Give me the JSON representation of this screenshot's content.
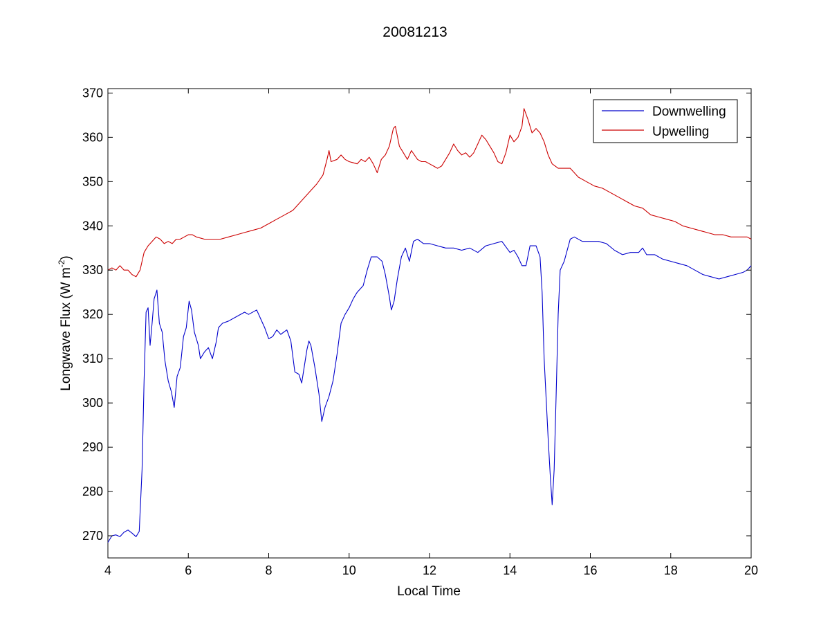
{
  "chart_data": {
    "type": "line",
    "title": "20081213",
    "xlabel": "Local Time",
    "ylabel": {
      "main": "Longwave Flux (W m",
      "sup": "-2",
      "close": ")"
    },
    "xlim": [
      4,
      20
    ],
    "ylim": [
      265,
      371
    ],
    "xticks": [
      4,
      6,
      8,
      10,
      12,
      14,
      16,
      18,
      20
    ],
    "yticks": [
      270,
      280,
      290,
      300,
      310,
      320,
      330,
      340,
      350,
      360,
      370
    ],
    "grid": false,
    "legend_position": "top-right",
    "series": [
      {
        "name": "Downwelling",
        "color": "#0000cc",
        "points": [
          [
            4.0,
            268.5
          ],
          [
            4.1,
            270.0
          ],
          [
            4.2,
            270.2
          ],
          [
            4.3,
            269.8
          ],
          [
            4.4,
            270.8
          ],
          [
            4.5,
            271.3
          ],
          [
            4.6,
            270.6
          ],
          [
            4.7,
            269.8
          ],
          [
            4.78,
            271.0
          ],
          [
            4.85,
            285.0
          ],
          [
            4.9,
            305.0
          ],
          [
            4.95,
            320.5
          ],
          [
            5.0,
            321.5
          ],
          [
            5.05,
            313.0
          ],
          [
            5.1,
            318.0
          ],
          [
            5.15,
            323.5
          ],
          [
            5.22,
            325.5
          ],
          [
            5.28,
            318.0
          ],
          [
            5.35,
            316.0
          ],
          [
            5.42,
            309.5
          ],
          [
            5.5,
            305.0
          ],
          [
            5.58,
            302.5
          ],
          [
            5.65,
            299.0
          ],
          [
            5.72,
            306.0
          ],
          [
            5.8,
            308.0
          ],
          [
            5.88,
            315.0
          ],
          [
            5.95,
            317.0
          ],
          [
            6.02,
            323.0
          ],
          [
            6.08,
            321.0
          ],
          [
            6.15,
            316.0
          ],
          [
            6.25,
            313.0
          ],
          [
            6.3,
            310.0
          ],
          [
            6.4,
            311.5
          ],
          [
            6.5,
            312.5
          ],
          [
            6.6,
            310.0
          ],
          [
            6.7,
            314.0
          ],
          [
            6.75,
            317.0
          ],
          [
            6.85,
            318.0
          ],
          [
            7.0,
            318.5
          ],
          [
            7.2,
            319.5
          ],
          [
            7.4,
            320.5
          ],
          [
            7.5,
            320.0
          ],
          [
            7.7,
            321.0
          ],
          [
            7.8,
            319.0
          ],
          [
            7.9,
            317.0
          ],
          [
            8.0,
            314.5
          ],
          [
            8.1,
            315.0
          ],
          [
            8.2,
            316.5
          ],
          [
            8.3,
            315.5
          ],
          [
            8.45,
            316.5
          ],
          [
            8.55,
            314.0
          ],
          [
            8.65,
            307.0
          ],
          [
            8.75,
            306.5
          ],
          [
            8.82,
            304.5
          ],
          [
            8.88,
            308.0
          ],
          [
            8.95,
            312.0
          ],
          [
            9.0,
            314.0
          ],
          [
            9.05,
            313.0
          ],
          [
            9.15,
            308.0
          ],
          [
            9.25,
            302.0
          ],
          [
            9.32,
            295.8
          ],
          [
            9.4,
            299.0
          ],
          [
            9.5,
            301.5
          ],
          [
            9.6,
            305.0
          ],
          [
            9.7,
            311.0
          ],
          [
            9.8,
            318.0
          ],
          [
            9.9,
            320.0
          ],
          [
            10.0,
            321.5
          ],
          [
            10.1,
            323.5
          ],
          [
            10.2,
            325.0
          ],
          [
            10.35,
            326.5
          ],
          [
            10.45,
            330.0
          ],
          [
            10.55,
            333.0
          ],
          [
            10.7,
            333.0
          ],
          [
            10.82,
            332.0
          ],
          [
            10.9,
            329.0
          ],
          [
            11.0,
            324.0
          ],
          [
            11.05,
            321.0
          ],
          [
            11.12,
            323.0
          ],
          [
            11.2,
            328.0
          ],
          [
            11.3,
            333.0
          ],
          [
            11.4,
            335.0
          ],
          [
            11.5,
            332.0
          ],
          [
            11.6,
            336.5
          ],
          [
            11.7,
            337.0
          ],
          [
            11.85,
            336.0
          ],
          [
            12.0,
            336.0
          ],
          [
            12.2,
            335.5
          ],
          [
            12.4,
            335.0
          ],
          [
            12.6,
            335.0
          ],
          [
            12.8,
            334.5
          ],
          [
            13.0,
            335.0
          ],
          [
            13.2,
            334.0
          ],
          [
            13.4,
            335.5
          ],
          [
            13.6,
            336.0
          ],
          [
            13.8,
            336.5
          ],
          [
            14.0,
            334.0
          ],
          [
            14.1,
            334.5
          ],
          [
            14.2,
            333.0
          ],
          [
            14.3,
            331.0
          ],
          [
            14.4,
            331.0
          ],
          [
            14.5,
            335.5
          ],
          [
            14.65,
            335.5
          ],
          [
            14.75,
            333.0
          ],
          [
            14.8,
            325.0
          ],
          [
            14.85,
            310.0
          ],
          [
            14.9,
            301.0
          ],
          [
            14.95,
            292.0
          ],
          [
            15.0,
            284.0
          ],
          [
            15.05,
            277.0
          ],
          [
            15.1,
            285.0
          ],
          [
            15.15,
            302.0
          ],
          [
            15.2,
            320.0
          ],
          [
            15.25,
            330.0
          ],
          [
            15.35,
            332.0
          ],
          [
            15.5,
            337.0
          ],
          [
            15.6,
            337.5
          ],
          [
            15.8,
            336.5
          ],
          [
            16.0,
            336.5
          ],
          [
            16.2,
            336.5
          ],
          [
            16.4,
            336.0
          ],
          [
            16.6,
            334.5
          ],
          [
            16.8,
            333.5
          ],
          [
            17.0,
            334.0
          ],
          [
            17.2,
            334.0
          ],
          [
            17.3,
            335.0
          ],
          [
            17.4,
            333.5
          ],
          [
            17.6,
            333.5
          ],
          [
            17.8,
            332.5
          ],
          [
            18.0,
            332.0
          ],
          [
            18.2,
            331.5
          ],
          [
            18.4,
            331.0
          ],
          [
            18.6,
            330.0
          ],
          [
            18.8,
            329.0
          ],
          [
            19.0,
            328.5
          ],
          [
            19.2,
            328.0
          ],
          [
            19.4,
            328.5
          ],
          [
            19.6,
            329.0
          ],
          [
            19.8,
            329.5
          ],
          [
            19.9,
            330.0
          ],
          [
            20.0,
            331.0
          ]
        ]
      },
      {
        "name": "Upwelling",
        "color": "#cc0000",
        "points": [
          [
            4.0,
            330.0
          ],
          [
            4.1,
            330.5
          ],
          [
            4.2,
            330.0
          ],
          [
            4.3,
            331.0
          ],
          [
            4.4,
            330.0
          ],
          [
            4.5,
            330.0
          ],
          [
            4.6,
            329.0
          ],
          [
            4.7,
            328.5
          ],
          [
            4.8,
            330.0
          ],
          [
            4.9,
            334.0
          ],
          [
            5.0,
            335.5
          ],
          [
            5.1,
            336.5
          ],
          [
            5.2,
            337.5
          ],
          [
            5.3,
            337.0
          ],
          [
            5.4,
            336.0
          ],
          [
            5.5,
            336.5
          ],
          [
            5.6,
            336.0
          ],
          [
            5.7,
            337.0
          ],
          [
            5.8,
            337.0
          ],
          [
            5.9,
            337.5
          ],
          [
            6.0,
            338.0
          ],
          [
            6.1,
            338.0
          ],
          [
            6.2,
            337.5
          ],
          [
            6.4,
            337.0
          ],
          [
            6.6,
            337.0
          ],
          [
            6.8,
            337.0
          ],
          [
            7.0,
            337.5
          ],
          [
            7.2,
            338.0
          ],
          [
            7.4,
            338.5
          ],
          [
            7.6,
            339.0
          ],
          [
            7.8,
            339.5
          ],
          [
            8.0,
            340.5
          ],
          [
            8.2,
            341.5
          ],
          [
            8.4,
            342.5
          ],
          [
            8.6,
            343.5
          ],
          [
            8.8,
            345.5
          ],
          [
            9.0,
            347.5
          ],
          [
            9.2,
            349.5
          ],
          [
            9.35,
            351.5
          ],
          [
            9.45,
            355.0
          ],
          [
            9.5,
            357.0
          ],
          [
            9.55,
            354.5
          ],
          [
            9.7,
            355.0
          ],
          [
            9.8,
            356.0
          ],
          [
            9.9,
            355.0
          ],
          [
            10.0,
            354.5
          ],
          [
            10.2,
            354.0
          ],
          [
            10.3,
            355.0
          ],
          [
            10.4,
            354.5
          ],
          [
            10.5,
            355.5
          ],
          [
            10.6,
            354.0
          ],
          [
            10.7,
            352.0
          ],
          [
            10.8,
            355.0
          ],
          [
            10.9,
            356.0
          ],
          [
            11.0,
            358.0
          ],
          [
            11.1,
            362.0
          ],
          [
            11.15,
            362.5
          ],
          [
            11.25,
            358.0
          ],
          [
            11.35,
            356.5
          ],
          [
            11.45,
            355.0
          ],
          [
            11.55,
            357.0
          ],
          [
            11.7,
            355.0
          ],
          [
            11.8,
            354.5
          ],
          [
            11.9,
            354.5
          ],
          [
            12.0,
            354.0
          ],
          [
            12.1,
            353.5
          ],
          [
            12.2,
            353.0
          ],
          [
            12.3,
            353.5
          ],
          [
            12.4,
            355.0
          ],
          [
            12.5,
            356.5
          ],
          [
            12.6,
            358.5
          ],
          [
            12.7,
            357.0
          ],
          [
            12.8,
            356.0
          ],
          [
            12.9,
            356.5
          ],
          [
            13.0,
            355.5
          ],
          [
            13.1,
            356.5
          ],
          [
            13.2,
            358.5
          ],
          [
            13.3,
            360.5
          ],
          [
            13.4,
            359.5
          ],
          [
            13.5,
            358.0
          ],
          [
            13.6,
            356.5
          ],
          [
            13.7,
            354.5
          ],
          [
            13.8,
            354.0
          ],
          [
            13.9,
            356.5
          ],
          [
            14.0,
            360.5
          ],
          [
            14.1,
            359.0
          ],
          [
            14.2,
            360.0
          ],
          [
            14.3,
            362.5
          ],
          [
            14.35,
            366.5
          ],
          [
            14.45,
            364.0
          ],
          [
            14.55,
            361.0
          ],
          [
            14.65,
            362.0
          ],
          [
            14.75,
            361.0
          ],
          [
            14.85,
            359.0
          ],
          [
            14.95,
            356.0
          ],
          [
            15.05,
            354.0
          ],
          [
            15.2,
            353.0
          ],
          [
            15.35,
            353.0
          ],
          [
            15.5,
            353.0
          ],
          [
            15.6,
            352.0
          ],
          [
            15.7,
            351.0
          ],
          [
            15.9,
            350.0
          ],
          [
            16.1,
            349.0
          ],
          [
            16.3,
            348.5
          ],
          [
            16.5,
            347.5
          ],
          [
            16.7,
            346.5
          ],
          [
            16.9,
            345.5
          ],
          [
            17.1,
            344.5
          ],
          [
            17.3,
            344.0
          ],
          [
            17.5,
            342.5
          ],
          [
            17.7,
            342.0
          ],
          [
            17.9,
            341.5
          ],
          [
            18.1,
            341.0
          ],
          [
            18.3,
            340.0
          ],
          [
            18.5,
            339.5
          ],
          [
            18.7,
            339.0
          ],
          [
            18.9,
            338.5
          ],
          [
            19.1,
            338.0
          ],
          [
            19.3,
            338.0
          ],
          [
            19.5,
            337.5
          ],
          [
            19.7,
            337.5
          ],
          [
            19.9,
            337.5
          ],
          [
            20.0,
            337.0
          ]
        ]
      }
    ]
  }
}
